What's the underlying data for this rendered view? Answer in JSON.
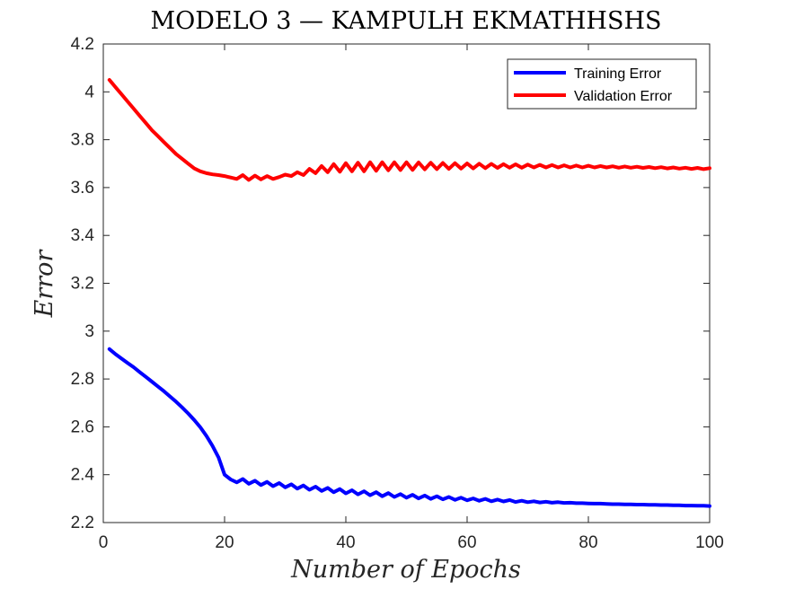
{
  "chart_data": {
    "type": "line",
    "title": "MODELO 3 — KAMPULH EKMATHHSHS",
    "xlabel": "Number of Epochs",
    "ylabel": "Error",
    "xlim": [
      0,
      100
    ],
    "ylim": [
      2.2,
      4.2
    ],
    "xticks": [
      0,
      20,
      40,
      60,
      80,
      100
    ],
    "yticks": [
      2.2,
      2.4,
      2.6,
      2.8,
      3,
      3.2,
      3.4,
      3.6,
      3.8,
      4,
      4.2
    ],
    "legend_position": "top-right",
    "grid": false,
    "series": [
      {
        "name": "Training Error",
        "color": "#0000ff",
        "x": [
          1,
          2,
          3,
          4,
          5,
          6,
          7,
          8,
          9,
          10,
          11,
          12,
          13,
          14,
          15,
          16,
          17,
          18,
          19,
          20,
          21,
          22,
          23,
          24,
          25,
          26,
          27,
          28,
          29,
          30,
          31,
          32,
          33,
          34,
          35,
          36,
          37,
          38,
          39,
          40,
          41,
          42,
          43,
          44,
          45,
          46,
          47,
          48,
          49,
          50,
          51,
          52,
          53,
          54,
          55,
          56,
          57,
          58,
          59,
          60,
          61,
          62,
          63,
          64,
          65,
          66,
          67,
          68,
          69,
          70,
          71,
          72,
          73,
          74,
          75,
          76,
          77,
          78,
          79,
          80,
          81,
          82,
          83,
          84,
          85,
          86,
          87,
          88,
          89,
          90,
          91,
          92,
          93,
          94,
          95,
          96,
          97,
          98,
          99,
          100
        ],
        "y": [
          2.925,
          2.904,
          2.885,
          2.867,
          2.849,
          2.829,
          2.809,
          2.789,
          2.769,
          2.749,
          2.727,
          2.705,
          2.681,
          2.656,
          2.628,
          2.598,
          2.562,
          2.521,
          2.472,
          2.4,
          2.38,
          2.368,
          2.382,
          2.362,
          2.375,
          2.357,
          2.37,
          2.352,
          2.365,
          2.347,
          2.36,
          2.342,
          2.355,
          2.337,
          2.35,
          2.332,
          2.345,
          2.327,
          2.34,
          2.322,
          2.335,
          2.318,
          2.331,
          2.314,
          2.327,
          2.31,
          2.323,
          2.307,
          2.319,
          2.304,
          2.316,
          2.301,
          2.313,
          2.299,
          2.31,
          2.297,
          2.307,
          2.295,
          2.304,
          2.293,
          2.301,
          2.291,
          2.299,
          2.289,
          2.296,
          2.288,
          2.294,
          2.286,
          2.291,
          2.285,
          2.289,
          2.284,
          2.287,
          2.283,
          2.285,
          2.282,
          2.283,
          2.281,
          2.281,
          2.28,
          2.279,
          2.279,
          2.278,
          2.277,
          2.277,
          2.276,
          2.276,
          2.275,
          2.275,
          2.274,
          2.274,
          2.273,
          2.273,
          2.272,
          2.272,
          2.271,
          2.271,
          2.27,
          2.27,
          2.269
        ]
      },
      {
        "name": "Validation Error",
        "color": "#ff0000",
        "x": [
          1,
          2,
          3,
          4,
          5,
          6,
          7,
          8,
          9,
          10,
          11,
          12,
          13,
          14,
          15,
          16,
          17,
          18,
          19,
          20,
          21,
          22,
          23,
          24,
          25,
          26,
          27,
          28,
          29,
          30,
          31,
          32,
          33,
          34,
          35,
          36,
          37,
          38,
          39,
          40,
          41,
          42,
          43,
          44,
          45,
          46,
          47,
          48,
          49,
          50,
          51,
          52,
          53,
          54,
          55,
          56,
          57,
          58,
          59,
          60,
          61,
          62,
          63,
          64,
          65,
          66,
          67,
          68,
          69,
          70,
          71,
          72,
          73,
          74,
          75,
          76,
          77,
          78,
          79,
          80,
          81,
          82,
          83,
          84,
          85,
          86,
          87,
          88,
          89,
          90,
          91,
          92,
          93,
          94,
          95,
          96,
          97,
          98,
          99,
          100
        ],
        "y": [
          4.05,
          4.02,
          3.99,
          3.96,
          3.93,
          3.9,
          3.87,
          3.84,
          3.815,
          3.79,
          3.765,
          3.74,
          3.72,
          3.7,
          3.68,
          3.668,
          3.66,
          3.655,
          3.652,
          3.648,
          3.642,
          3.636,
          3.652,
          3.632,
          3.65,
          3.634,
          3.648,
          3.636,
          3.644,
          3.654,
          3.648,
          3.664,
          3.652,
          3.678,
          3.66,
          3.69,
          3.664,
          3.698,
          3.666,
          3.702,
          3.668,
          3.704,
          3.668,
          3.706,
          3.67,
          3.706,
          3.672,
          3.706,
          3.673,
          3.706,
          3.674,
          3.705,
          3.676,
          3.704,
          3.677,
          3.703,
          3.678,
          3.702,
          3.679,
          3.701,
          3.68,
          3.7,
          3.681,
          3.699,
          3.682,
          3.698,
          3.683,
          3.697,
          3.683,
          3.696,
          3.684,
          3.695,
          3.684,
          3.694,
          3.684,
          3.693,
          3.684,
          3.692,
          3.684,
          3.691,
          3.684,
          3.69,
          3.684,
          3.689,
          3.683,
          3.688,
          3.683,
          3.687,
          3.682,
          3.686,
          3.681,
          3.685,
          3.68,
          3.684,
          3.679,
          3.683,
          3.678,
          3.682,
          3.677,
          3.681
        ]
      }
    ]
  }
}
